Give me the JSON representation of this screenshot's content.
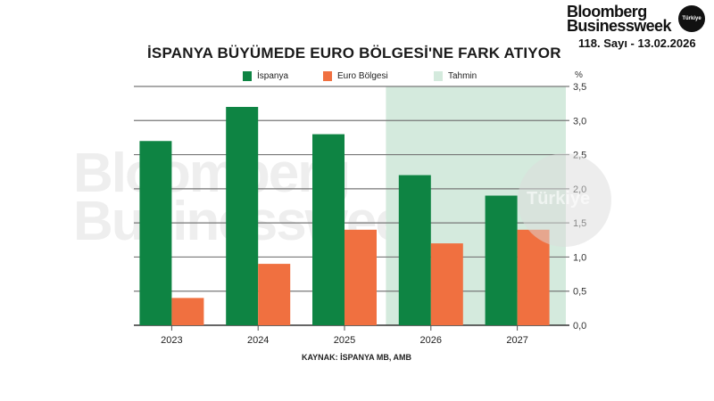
{
  "header": {
    "brand_line1": "Bloomberg",
    "brand_line2": "Businessweek",
    "brand_badge": "Türkiye",
    "issue": "118. Sayı - 13.02.2026"
  },
  "legend": {
    "ispanya": "İspanya",
    "euro": "Euro Bölgesi",
    "forecast": "Tahmin"
  },
  "source": "KAYNAK: İSPANYA MB, AMB",
  "watermark": {
    "line1": "Bloomberg",
    "line2": "Businessweek",
    "badge": "Türkiye"
  },
  "colors": {
    "ispanya": "#0e8443",
    "euro": "#f07040",
    "forecast": "#d4eadd",
    "grid": "#777777"
  },
  "chart_data": {
    "type": "bar",
    "title": "İSPANYA BÜYÜMEDE EURO BÖLGESİ'NE FARK ATIYOR",
    "categories": [
      "2023",
      "2024",
      "2025",
      "2026",
      "2027"
    ],
    "series": [
      {
        "name": "İspanya",
        "values": [
          2.7,
          3.2,
          2.8,
          2.2,
          1.9
        ],
        "color": "#0e8443"
      },
      {
        "name": "Euro Bölgesi",
        "values": [
          0.4,
          0.9,
          1.4,
          1.2,
          1.4
        ],
        "color": "#f07040"
      }
    ],
    "forecast_region": {
      "label": "Tahmin",
      "categories": [
        "2026",
        "2027"
      ]
    },
    "xlabel": "",
    "ylabel": "%",
    "ylim": [
      0,
      3.5
    ],
    "yticks": [
      "0,0",
      "0,5",
      "1,0",
      "1,5",
      "2,0",
      "2,5",
      "3,0",
      "3,5"
    ],
    "grid": true,
    "legend_position": "top",
    "y_axis_position": "right",
    "source": "KAYNAK: İSPANYA MB, AMB"
  }
}
